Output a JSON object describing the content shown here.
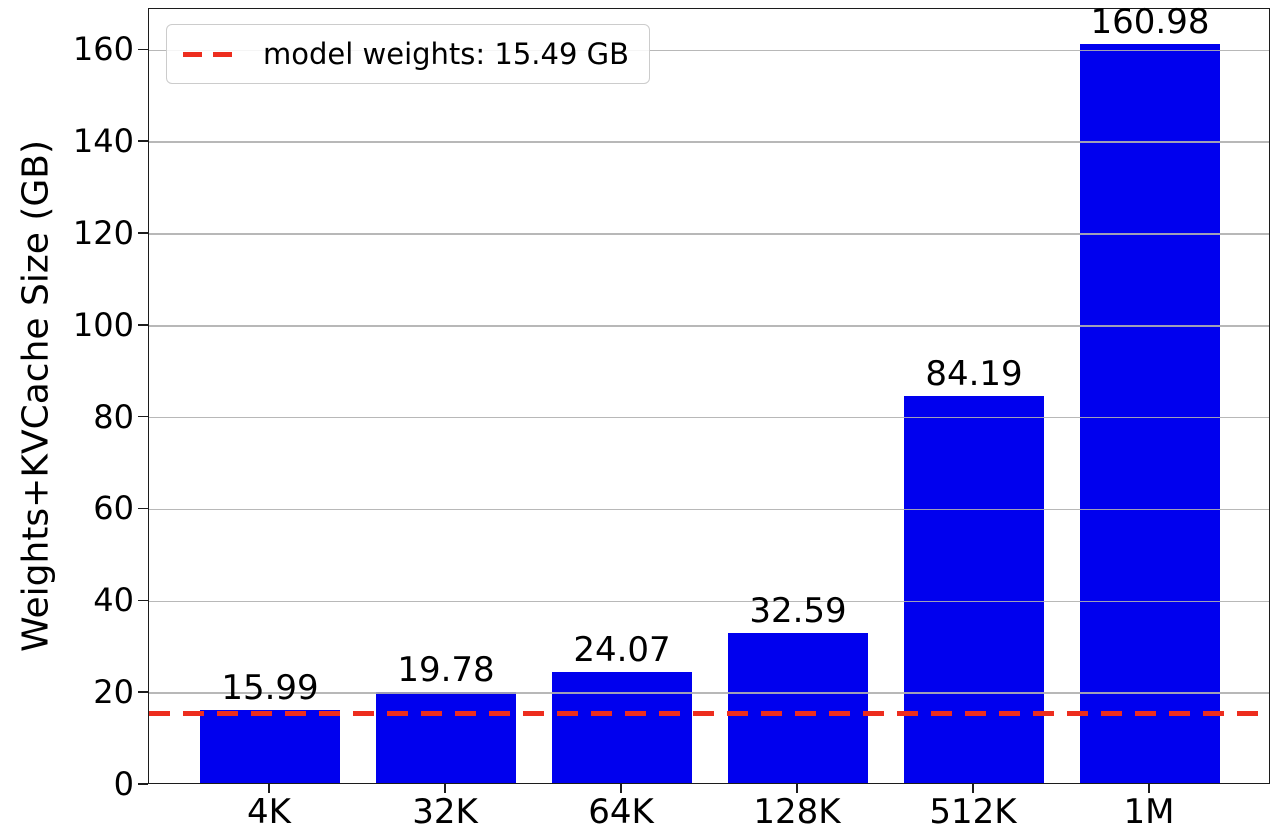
{
  "figure": {
    "colors": {
      "bar": "#0000ee",
      "threshold_line": "#ed2d1e",
      "grid": "#b0b0b0",
      "spine": "#1c1c1c",
      "text": "#000000",
      "legend_border": "#cccccc"
    }
  },
  "chart_data": {
    "type": "bar",
    "title": "",
    "xlabel": "",
    "ylabel": "Weights+KVCache Size (GB)",
    "categories": [
      "4K",
      "32K",
      "64K",
      "128K",
      "512K",
      "1M"
    ],
    "values": [
      15.99,
      19.78,
      24.07,
      32.59,
      84.19,
      160.98
    ],
    "bar_labels": [
      "15.99",
      "19.78",
      "24.07",
      "32.59",
      "84.19",
      "160.98"
    ],
    "yticks": [
      0,
      20,
      40,
      60,
      80,
      100,
      120,
      140,
      160
    ],
    "ytick_labels": [
      "0",
      "20",
      "40",
      "60",
      "80",
      "100",
      "120",
      "140",
      "160"
    ],
    "ylim": [
      0,
      169
    ],
    "bar_color": "#0000ee",
    "grid": "horizontal",
    "grid_over_bars": true,
    "legend_position": "upper-left",
    "threshold": {
      "value": 15.49,
      "label": "model weights: 15.49 GB",
      "color": "#ed2d1e",
      "style": "dashed"
    }
  }
}
